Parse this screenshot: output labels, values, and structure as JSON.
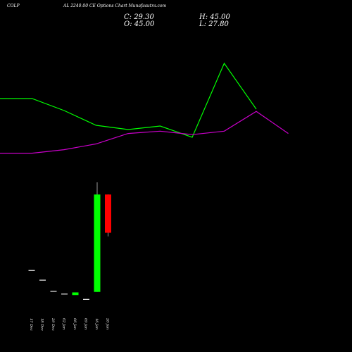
{
  "header": {
    "symbol": "COLP",
    "subtitle": "AL 2240.00 CE Options Chart Munafasutra.com",
    "close": "C: 29.30",
    "high": "H: 45.00",
    "open": "O: 45.00",
    "low": "L: 27.80"
  },
  "colors": {
    "background": "#000000",
    "up": "#00ff00",
    "down": "#ff0000",
    "upper_line": "#00ff00",
    "lower_line": "#cc00cc",
    "text": "#ffffff"
  },
  "chart_data": {
    "type": "candlestick",
    "grid": false,
    "categories": [
      "17 Dec",
      "18 Dec",
      "29 Dec",
      "02 Jan",
      "06 Jan",
      "09 Jan",
      "16 Jan",
      "20 Jan"
    ],
    "candles": [
      {
        "date": "17 Dec",
        "open": 14.0,
        "high": 14.0,
        "low": 14.0,
        "close": 14.0
      },
      {
        "date": "18 Dec",
        "open": 10.0,
        "high": 10.0,
        "low": 10.0,
        "close": 10.0
      },
      {
        "date": "29 Dec",
        "open": 5.5,
        "high": 5.5,
        "low": 5.5,
        "close": 5.5
      },
      {
        "date": "02 Jan",
        "open": 4.3,
        "high": 4.3,
        "low": 4.3,
        "close": 4.3
      },
      {
        "date": "06 Jan",
        "open": 3.7,
        "high": 4.8,
        "low": 3.7,
        "close": 4.8
      },
      {
        "date": "09 Jan",
        "open": 2.1,
        "high": 2.1,
        "low": 2.1,
        "close": 2.1
      },
      {
        "date": "16 Jan",
        "open": 5.0,
        "high": 50.0,
        "low": 5.0,
        "close": 45.0
      },
      {
        "date": "20 Jan",
        "open": 45.0,
        "high": 45.0,
        "low": 27.8,
        "close": 29.3
      }
    ],
    "upper_line": [
      1.0,
      1.0,
      0.83,
      0.62,
      0.56,
      0.61,
      0.45,
      1.5,
      0.85
    ],
    "lower_line": [
      0.36,
      0.36,
      0.39,
      0.44,
      0.53,
      0.55,
      0.52,
      0.55,
      0.72,
      0.53
    ]
  }
}
